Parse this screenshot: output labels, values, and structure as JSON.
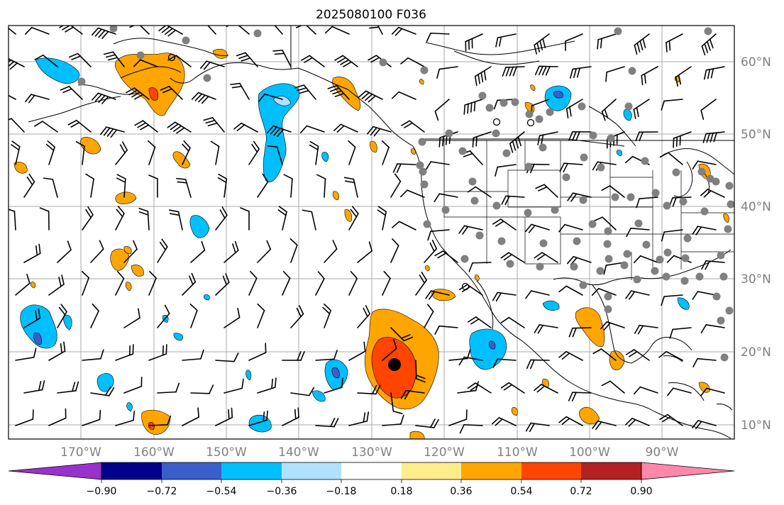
{
  "title": "2025080100 F036",
  "map": {
    "lat_labels": [
      "60°N",
      "50°N",
      "40°N",
      "30°N",
      "20°N",
      "10°N"
    ],
    "lon_labels": [
      "170°W",
      "160°W",
      "150°W",
      "140°W",
      "130°W",
      "120°W",
      "110°W",
      "100°W",
      "90°W"
    ],
    "grid": true,
    "colors": {
      "land": "#000000",
      "grid": "#a8a8a8",
      "stations": "#808080",
      "barbs": "#000000"
    }
  },
  "colorbar": {
    "labels": [
      "−0.90",
      "−0.72",
      "−0.54",
      "−0.36",
      "−0.18",
      "0.18",
      "0.36",
      "0.54",
      "0.72",
      "0.90"
    ],
    "colors": [
      "#9932cc",
      "#00008b",
      "#3a5fcd",
      "#00bfff",
      "#b0e2ff",
      "#ffffff",
      "#ffec8b",
      "#ffa500",
      "#ff4500",
      "#b22222",
      "#ff88aa"
    ]
  }
}
